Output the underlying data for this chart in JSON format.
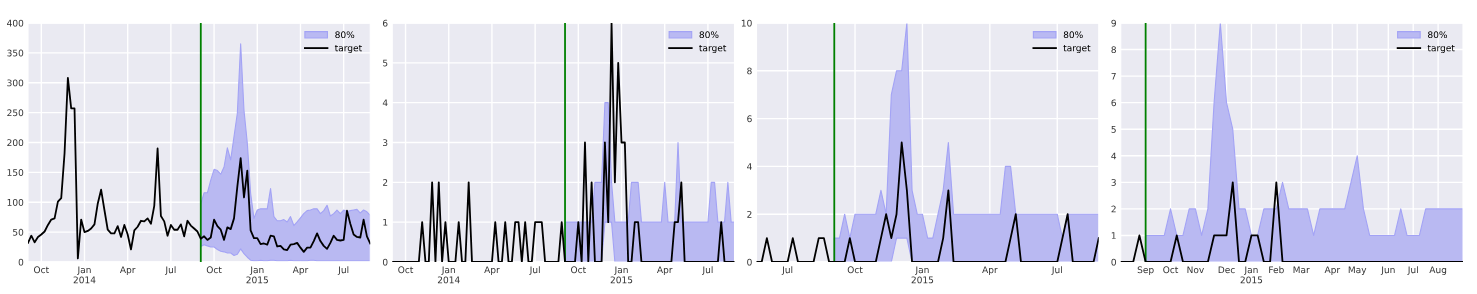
{
  "chart_data": [
    {
      "type": "line",
      "grid": true,
      "legend": "top right",
      "x": [
        "2013-09-08",
        "2013-09-15",
        "2013-09-22",
        "2013-09-29",
        "2013-10-06",
        "2013-10-13",
        "2013-10-20",
        "2013-10-27",
        "2013-11-03",
        "2013-11-10",
        "2013-11-17",
        "2013-11-24",
        "2013-12-01",
        "2013-12-08",
        "2013-12-15",
        "2013-12-22",
        "2013-12-29",
        "2014-01-05",
        "2014-01-12",
        "2014-01-19",
        "2014-01-26",
        "2014-02-02",
        "2014-02-09",
        "2014-02-16",
        "2014-02-23",
        "2014-03-02",
        "2014-03-09",
        "2014-03-16",
        "2014-03-23",
        "2014-03-30",
        "2014-04-06",
        "2014-04-13",
        "2014-04-20",
        "2014-04-27",
        "2014-05-04",
        "2014-05-11",
        "2014-05-18",
        "2014-05-25",
        "2014-06-01",
        "2014-06-08",
        "2014-06-15",
        "2014-06-22",
        "2014-06-29",
        "2014-07-06",
        "2014-07-13",
        "2014-07-20",
        "2014-07-27",
        "2014-08-03",
        "2014-08-10",
        "2014-08-17",
        "2014-08-24",
        "2014-08-31",
        "2014-09-07",
        "2014-09-14",
        "2014-09-21",
        "2014-09-28",
        "2014-10-05",
        "2014-10-12",
        "2014-10-19",
        "2014-10-26",
        "2014-11-02",
        "2014-11-09",
        "2014-11-16",
        "2014-11-23",
        "2014-11-30",
        "2014-12-07",
        "2014-12-14",
        "2014-12-21",
        "2014-12-28",
        "2015-01-04",
        "2015-01-11",
        "2015-01-18",
        "2015-01-25",
        "2015-02-01",
        "2015-02-08",
        "2015-02-15",
        "2015-02-22",
        "2015-03-01",
        "2015-03-08",
        "2015-03-15",
        "2015-03-22",
        "2015-03-29",
        "2015-04-05",
        "2015-04-12",
        "2015-04-19",
        "2015-04-26",
        "2015-05-03",
        "2015-05-10",
        "2015-05-17",
        "2015-05-24",
        "2015-05-31",
        "2015-06-07",
        "2015-06-14",
        "2015-06-21",
        "2015-06-28",
        "2015-07-05",
        "2015-07-12",
        "2015-07-19",
        "2015-07-26",
        "2015-08-02",
        "2015-08-09",
        "2015-08-16",
        "2015-08-23",
        "2015-08-30"
      ],
      "xlim": [
        "2013-09-08",
        "2015-08-30"
      ],
      "xticks": [
        {
          "value": "2013-10-06",
          "label": "Oct"
        },
        {
          "value": "2014-01-05",
          "label": "Jan\n2014"
        },
        {
          "value": "2014-04-06",
          "label": "Apr"
        },
        {
          "value": "2014-07-06",
          "label": "Jul"
        },
        {
          "value": "2014-10-05",
          "label": "Oct"
        },
        {
          "value": "2015-01-04",
          "label": "Jan\n2015"
        },
        {
          "value": "2015-04-05",
          "label": "Apr"
        },
        {
          "value": "2015-07-05",
          "label": "Jul"
        }
      ],
      "ylim": [
        0,
        400
      ],
      "yticks": [
        0,
        50,
        100,
        150,
        200,
        250,
        300,
        350,
        400
      ],
      "ref_lines": [
        {
          "axis": "x",
          "value": "2014-09-07",
          "color": "#008000"
        }
      ],
      "series": [
        {
          "name": "80%",
          "type": "area",
          "color": "#b9b9f2",
          "x": [
            "2014-09-07",
            "2014-09-14",
            "2014-09-21",
            "2014-09-28",
            "2014-10-05",
            "2014-10-12",
            "2014-10-19",
            "2014-10-26",
            "2014-11-02",
            "2014-11-09",
            "2014-11-16",
            "2014-11-23",
            "2014-11-30",
            "2014-12-07",
            "2014-12-14",
            "2014-12-21",
            "2014-12-28",
            "2015-01-04",
            "2015-01-11",
            "2015-01-18",
            "2015-01-25",
            "2015-02-01",
            "2015-02-08",
            "2015-02-15",
            "2015-02-22",
            "2015-03-01",
            "2015-03-08",
            "2015-03-15",
            "2015-03-22",
            "2015-03-29",
            "2015-04-05",
            "2015-04-12",
            "2015-04-19",
            "2015-04-26",
            "2015-05-03",
            "2015-05-10",
            "2015-05-17",
            "2015-05-24",
            "2015-05-31",
            "2015-06-07",
            "2015-06-14",
            "2015-06-21",
            "2015-06-28",
            "2015-07-05",
            "2015-07-12",
            "2015-07-19",
            "2015-07-26",
            "2015-08-02",
            "2015-08-09",
            "2015-08-16",
            "2015-08-23",
            "2015-08-30"
          ],
          "lower": [
            26,
            29,
            27,
            25,
            25,
            21,
            18,
            17,
            15,
            15,
            11,
            13,
            22,
            14,
            8,
            3,
            2,
            2,
            3,
            2,
            2,
            3,
            3,
            2,
            2,
            2,
            2,
            3,
            2,
            2,
            2,
            2,
            2,
            3,
            3,
            2,
            2,
            2,
            2,
            2,
            2,
            2,
            2,
            2,
            2,
            2,
            2,
            2,
            2,
            2,
            2,
            2
          ],
          "values": [
            null,
            null,
            null,
            null,
            null,
            null,
            null,
            null,
            null,
            null,
            null,
            null,
            null,
            null,
            null,
            null,
            null,
            null,
            null,
            null,
            null,
            null,
            null,
            null,
            null,
            null,
            null,
            null,
            null,
            null,
            null,
            null,
            null,
            null,
            null,
            null,
            null,
            null,
            null,
            null,
            null,
            null,
            null,
            null,
            null,
            null,
            null,
            null,
            null,
            null,
            null,
            null
          ],
          "upper": [
            97,
            116,
            116,
            137,
            155,
            153,
            147,
            159,
            191,
            171,
            210,
            249,
            365,
            254,
            199,
            115,
            73,
            87,
            89,
            89,
            89,
            123,
            76,
            69,
            69,
            71,
            67,
            76,
            61,
            67,
            74,
            81,
            86,
            87,
            89,
            89,
            81,
            86,
            95,
            77,
            81,
            87,
            81,
            87,
            84,
            86,
            87,
            88,
            82,
            87,
            84,
            78
          ]
        },
        {
          "name": "target",
          "color": "#000000",
          "values": [
            32,
            44,
            33,
            42,
            46,
            51,
            62,
            71,
            73,
            101,
            107,
            182,
            308,
            257,
            257,
            6,
            71,
            50,
            52,
            56,
            63,
            98,
            121,
            87,
            54,
            48,
            48,
            60,
            42,
            62,
            46,
            21,
            53,
            59,
            69,
            68,
            73,
            64,
            94,
            190,
            77,
            68,
            44,
            62,
            54,
            54,
            63,
            43,
            69,
            61,
            56,
            51,
            39,
            43,
            37,
            41,
            71,
            60,
            54,
            37,
            58,
            55,
            73,
            126,
            174,
            108,
            153,
            53,
            40,
            40,
            30,
            31,
            29,
            44,
            43,
            26,
            27,
            21,
            20,
            29,
            30,
            32,
            24,
            17,
            24,
            24,
            35,
            48,
            35,
            27,
            22,
            32,
            44,
            37,
            36,
            37,
            86,
            64,
            46,
            42,
            41,
            71,
            43,
            31
          ]
        }
      ]
    },
    {
      "type": "line",
      "grid": true,
      "legend": "top right",
      "x": [
        "2013-09-08",
        "2013-09-15",
        "2013-09-22",
        "2013-09-29",
        "2013-10-06",
        "2013-10-13",
        "2013-10-20",
        "2013-10-27",
        "2013-11-03",
        "2013-11-10",
        "2013-11-17",
        "2013-11-24",
        "2013-12-01",
        "2013-12-08",
        "2013-12-15",
        "2013-12-22",
        "2013-12-29",
        "2014-01-05",
        "2014-01-12",
        "2014-01-19",
        "2014-01-26",
        "2014-02-02",
        "2014-02-09",
        "2014-02-16",
        "2014-02-23",
        "2014-03-02",
        "2014-03-09",
        "2014-03-16",
        "2014-03-23",
        "2014-03-30",
        "2014-04-06",
        "2014-04-13",
        "2014-04-20",
        "2014-04-27",
        "2014-05-04",
        "2014-05-11",
        "2014-05-18",
        "2014-05-25",
        "2014-06-01",
        "2014-06-08",
        "2014-06-15",
        "2014-06-22",
        "2014-06-29",
        "2014-07-06",
        "2014-07-13",
        "2014-07-20",
        "2014-07-27",
        "2014-08-03",
        "2014-08-10",
        "2014-08-17",
        "2014-08-24",
        "2014-08-31",
        "2014-09-07",
        "2014-09-14",
        "2014-09-21",
        "2014-09-28",
        "2014-10-05",
        "2014-10-12",
        "2014-10-19",
        "2014-10-26",
        "2014-11-02",
        "2014-11-09",
        "2014-11-16",
        "2014-11-23",
        "2014-11-30",
        "2014-12-07",
        "2014-12-14",
        "2014-12-21",
        "2014-12-28",
        "2015-01-04",
        "2015-01-11",
        "2015-01-18",
        "2015-01-25",
        "2015-02-01",
        "2015-02-08",
        "2015-02-15",
        "2015-02-22",
        "2015-03-01",
        "2015-03-08",
        "2015-03-15",
        "2015-03-22",
        "2015-03-29",
        "2015-04-05",
        "2015-04-12",
        "2015-04-19",
        "2015-04-26",
        "2015-05-03",
        "2015-05-10",
        "2015-05-17",
        "2015-05-24",
        "2015-05-31",
        "2015-06-07",
        "2015-06-14",
        "2015-06-21",
        "2015-06-28",
        "2015-07-05",
        "2015-07-12",
        "2015-07-19",
        "2015-07-26",
        "2015-08-02",
        "2015-08-09",
        "2015-08-16",
        "2015-08-23",
        "2015-08-30"
      ],
      "xlim": [
        "2013-09-08",
        "2015-08-30"
      ],
      "xticks": [
        {
          "value": "2013-10-06",
          "label": "Oct"
        },
        {
          "value": "2014-01-05",
          "label": "Jan\n2014"
        },
        {
          "value": "2014-04-06",
          "label": "Apr"
        },
        {
          "value": "2014-07-06",
          "label": "Jul"
        },
        {
          "value": "2014-10-05",
          "label": "Oct"
        },
        {
          "value": "2015-01-04",
          "label": "Jan\n2015"
        },
        {
          "value": "2015-04-05",
          "label": "Apr"
        },
        {
          "value": "2015-07-05",
          "label": "Jul"
        }
      ],
      "ylim": [
        0,
        6
      ],
      "yticks": [
        0,
        1,
        2,
        3,
        4,
        5,
        6
      ],
      "ref_lines": [
        {
          "axis": "x",
          "value": "2014-09-07",
          "color": "#008000"
        }
      ],
      "series": [
        {
          "name": "80%",
          "type": "area",
          "color": "#b9b9f2",
          "x": [
            "2014-09-07",
            "2014-09-14",
            "2014-09-21",
            "2014-09-28",
            "2014-10-05",
            "2014-10-12",
            "2014-10-19",
            "2014-10-26",
            "2014-11-02",
            "2014-11-09",
            "2014-11-16",
            "2014-11-23",
            "2014-11-30",
            "2014-12-07",
            "2014-12-14",
            "2014-12-21",
            "2014-12-28",
            "2015-01-04",
            "2015-01-11",
            "2015-01-18",
            "2015-01-25",
            "2015-02-01",
            "2015-02-08",
            "2015-02-15",
            "2015-02-22",
            "2015-03-01",
            "2015-03-08",
            "2015-03-15",
            "2015-03-22",
            "2015-03-29",
            "2015-04-05",
            "2015-04-12",
            "2015-04-19",
            "2015-04-26",
            "2015-05-03",
            "2015-05-10",
            "2015-05-17",
            "2015-05-24",
            "2015-05-31",
            "2015-06-07",
            "2015-06-14",
            "2015-06-21",
            "2015-06-28",
            "2015-07-05",
            "2015-07-12",
            "2015-07-19",
            "2015-07-26",
            "2015-08-02",
            "2015-08-09",
            "2015-08-16",
            "2015-08-23",
            "2015-08-30"
          ],
          "lower": [
            0,
            0,
            0,
            0,
            0,
            0,
            0,
            0,
            0,
            0,
            0,
            0,
            1,
            1,
            1,
            0,
            0,
            0,
            0,
            0,
            0,
            0,
            0,
            0,
            0,
            0,
            0,
            0,
            0,
            0,
            0,
            0,
            0,
            0,
            0,
            0,
            0,
            0,
            0,
            0,
            0,
            0,
            0,
            0,
            0,
            0,
            0,
            0,
            0,
            0,
            0,
            0
          ],
          "values": [
            null,
            null,
            null,
            null,
            null,
            null,
            null,
            null,
            null,
            null,
            null,
            null,
            null,
            null,
            null,
            null,
            null,
            null,
            null,
            null,
            null,
            null,
            null,
            null,
            null,
            null,
            null,
            null,
            null,
            null,
            null,
            null,
            null,
            null,
            null,
            null,
            null,
            null,
            null,
            null,
            null,
            null,
            null,
            null,
            null,
            null,
            null,
            null,
            null,
            null,
            null,
            null
          ],
          "upper": [
            1,
            1,
            1,
            1,
            1,
            1,
            1,
            1,
            1,
            2,
            2,
            2,
            4,
            4,
            2,
            1,
            1,
            1,
            1,
            1,
            2,
            2,
            2,
            1,
            1,
            1,
            1,
            1,
            1,
            1,
            2,
            1,
            1,
            1,
            3,
            1,
            1,
            1,
            1,
            1,
            1,
            1,
            1,
            1,
            2,
            2,
            1,
            1,
            1,
            2,
            1,
            1
          ]
        },
        {
          "name": "target",
          "color": "#000000",
          "values": [
            0,
            0,
            0,
            0,
            0,
            0,
            0,
            0,
            0,
            1,
            0,
            0,
            2,
            0,
            2,
            0,
            1,
            0,
            0,
            0,
            1,
            0,
            0,
            2,
            0,
            0,
            0,
            0,
            0,
            0,
            0,
            1,
            0,
            0,
            1,
            0,
            0,
            1,
            1,
            0,
            1,
            0,
            0,
            1,
            1,
            1,
            0,
            0,
            0,
            0,
            0,
            1,
            0,
            0,
            0,
            0,
            1,
            0,
            3,
            0,
            2,
            0,
            0,
            0,
            3,
            1,
            6,
            2,
            5,
            3,
            3,
            0,
            0,
            1,
            1,
            0,
            0,
            0,
            0,
            0,
            0,
            0,
            0,
            0,
            0,
            1,
            1,
            2,
            0,
            0,
            0,
            0,
            0,
            0,
            0,
            0,
            0,
            0,
            0,
            1,
            0,
            0,
            0,
            0
          ]
        }
      ]
    },
    {
      "type": "line",
      "grid": true,
      "legend": "top right",
      "x": [
        "2014-05-25",
        "2014-06-01",
        "2014-06-08",
        "2014-06-15",
        "2014-06-22",
        "2014-06-29",
        "2014-07-06",
        "2014-07-13",
        "2014-07-20",
        "2014-07-27",
        "2014-08-03",
        "2014-08-10",
        "2014-08-17",
        "2014-08-24",
        "2014-08-31",
        "2014-09-07",
        "2014-09-14",
        "2014-09-21",
        "2014-09-28",
        "2014-10-05",
        "2014-10-12",
        "2014-10-19",
        "2014-10-26",
        "2014-11-02",
        "2014-11-09",
        "2014-11-16",
        "2014-11-23",
        "2014-11-30",
        "2014-12-07",
        "2014-12-14",
        "2014-12-21",
        "2014-12-28",
        "2015-01-04",
        "2015-01-11",
        "2015-01-18",
        "2015-01-25",
        "2015-02-01",
        "2015-02-08",
        "2015-02-15",
        "2015-02-22",
        "2015-03-01",
        "2015-03-08",
        "2015-03-15",
        "2015-03-22",
        "2015-03-29",
        "2015-04-05",
        "2015-04-12",
        "2015-04-19",
        "2015-04-26",
        "2015-05-03",
        "2015-05-10",
        "2015-05-17",
        "2015-05-24",
        "2015-05-31",
        "2015-06-07",
        "2015-06-14",
        "2015-06-21",
        "2015-06-28",
        "2015-07-05",
        "2015-07-12",
        "2015-07-19",
        "2015-07-26",
        "2015-08-02",
        "2015-08-09",
        "2015-08-16",
        "2015-08-23",
        "2015-08-30"
      ],
      "xlim": [
        "2014-05-25",
        "2015-08-30"
      ],
      "xticks": [
        {
          "value": "2014-07-06",
          "label": "Jul"
        },
        {
          "value": "2014-10-05",
          "label": "Oct"
        },
        {
          "value": "2015-01-04",
          "label": "Jan\n2015"
        },
        {
          "value": "2015-04-05",
          "label": "Apr"
        },
        {
          "value": "2015-07-05",
          "label": "Jul"
        }
      ],
      "ylim": [
        0,
        10
      ],
      "yticks": [
        0,
        2,
        4,
        6,
        8,
        10
      ],
      "ref_lines": [
        {
          "axis": "x",
          "value": "2014-09-07",
          "color": "#008000"
        }
      ],
      "series": [
        {
          "name": "80%",
          "type": "area",
          "color": "#b9b9f2",
          "x": [
            "2014-09-07",
            "2014-09-14",
            "2014-09-21",
            "2014-09-28",
            "2014-10-05",
            "2014-10-12",
            "2014-10-19",
            "2014-10-26",
            "2014-11-02",
            "2014-11-09",
            "2014-11-16",
            "2014-11-23",
            "2014-11-30",
            "2014-12-07",
            "2014-12-14",
            "2014-12-21",
            "2014-12-28",
            "2015-01-04",
            "2015-01-11",
            "2015-01-18",
            "2015-01-25",
            "2015-02-01",
            "2015-02-08",
            "2015-02-15",
            "2015-02-22",
            "2015-03-01",
            "2015-03-08",
            "2015-03-15",
            "2015-03-22",
            "2015-03-29",
            "2015-04-05",
            "2015-04-12",
            "2015-04-19",
            "2015-04-26",
            "2015-05-03",
            "2015-05-10",
            "2015-05-17",
            "2015-05-24",
            "2015-05-31",
            "2015-06-07",
            "2015-06-14",
            "2015-06-21",
            "2015-06-28",
            "2015-07-05",
            "2015-07-12",
            "2015-07-19",
            "2015-07-26",
            "2015-08-02",
            "2015-08-09",
            "2015-08-16",
            "2015-08-23",
            "2015-08-30"
          ],
          "lower": [
            0,
            0,
            0,
            0,
            0,
            0,
            0,
            0,
            0,
            0,
            0,
            0,
            1,
            1,
            1,
            0,
            0,
            0,
            0,
            0,
            0,
            0,
            0,
            0,
            0,
            0,
            0,
            0,
            0,
            0,
            0,
            0,
            0,
            0,
            0,
            0,
            0,
            0,
            0,
            0,
            0,
            0,
            0,
            0,
            0,
            0,
            0,
            0,
            0,
            0,
            0,
            0
          ],
          "values": [
            null,
            null,
            null,
            null,
            null,
            null,
            null,
            null,
            null,
            null,
            null,
            null,
            null,
            null,
            null,
            null,
            null,
            null,
            null,
            null,
            null,
            null,
            null,
            null,
            null,
            null,
            null,
            null,
            null,
            null,
            null,
            null,
            null,
            null,
            null,
            null,
            null,
            null,
            null,
            null,
            null,
            null,
            null,
            null,
            null,
            null,
            null,
            null,
            null,
            null,
            null,
            null
          ],
          "upper": [
            1,
            1,
            2,
            1,
            2,
            2,
            2,
            2,
            2,
            3,
            2,
            7,
            8,
            8,
            10,
            3,
            2,
            2,
            1,
            1,
            2,
            3,
            5,
            2,
            2,
            2,
            2,
            2,
            2,
            2,
            2,
            2,
            2,
            4,
            4,
            2,
            2,
            2,
            2,
            2,
            2,
            2,
            2,
            2,
            1,
            2,
            2,
            2,
            2,
            2,
            2,
            2
          ]
        },
        {
          "name": "target",
          "color": "#000000",
          "values": [
            0,
            0,
            1,
            0,
            0,
            0,
            0,
            1,
            0,
            0,
            0,
            0,
            1,
            1,
            0,
            0,
            0,
            0,
            1,
            0,
            0,
            0,
            0,
            0,
            1,
            2,
            1,
            2,
            5,
            3,
            0,
            0,
            0,
            0,
            0,
            0,
            1,
            3,
            0,
            0,
            0,
            0,
            0,
            0,
            0,
            0,
            0,
            0,
            0,
            1,
            2,
            0,
            0,
            0,
            0,
            0,
            0,
            0,
            0,
            1,
            2,
            0,
            0,
            0,
            0,
            0,
            1
          ]
        }
      ]
    },
    {
      "type": "line",
      "grid": true,
      "legend": "top right",
      "x": [
        "2014-08-10",
        "2014-08-17",
        "2014-08-24",
        "2014-08-31",
        "2014-09-07",
        "2014-09-14",
        "2014-09-21",
        "2014-09-28",
        "2014-10-05",
        "2014-10-12",
        "2014-10-19",
        "2014-10-26",
        "2014-11-02",
        "2014-11-09",
        "2014-11-16",
        "2014-11-23",
        "2014-11-30",
        "2014-12-07",
        "2014-12-14",
        "2014-12-21",
        "2014-12-28",
        "2015-01-04",
        "2015-01-11",
        "2015-01-18",
        "2015-01-25",
        "2015-02-01",
        "2015-02-08",
        "2015-02-15",
        "2015-02-22",
        "2015-03-01",
        "2015-03-08",
        "2015-03-15",
        "2015-03-22",
        "2015-03-29",
        "2015-04-05",
        "2015-04-12",
        "2015-04-19",
        "2015-04-26",
        "2015-05-03",
        "2015-05-10",
        "2015-05-17",
        "2015-05-24",
        "2015-05-31",
        "2015-06-07",
        "2015-06-14",
        "2015-06-21",
        "2015-06-28",
        "2015-07-05",
        "2015-07-12",
        "2015-07-19",
        "2015-07-26",
        "2015-08-02",
        "2015-08-09",
        "2015-08-16",
        "2015-08-23",
        "2015-08-30"
      ],
      "xlim": [
        "2014-08-10",
        "2015-08-30"
      ],
      "xticks": [
        {
          "value": "2014-09-07",
          "label": "Sep"
        },
        {
          "value": "2014-10-05",
          "label": "Oct"
        },
        {
          "value": "2014-11-02",
          "label": "Nov"
        },
        {
          "value": "2014-12-07",
          "label": "Dec"
        },
        {
          "value": "2015-01-04",
          "label": "Jan\n2015"
        },
        {
          "value": "2015-02-01",
          "label": "Feb"
        },
        {
          "value": "2015-03-01",
          "label": "Mar"
        },
        {
          "value": "2015-04-05",
          "label": "Apr"
        },
        {
          "value": "2015-05-03",
          "label": "May"
        },
        {
          "value": "2015-06-07",
          "label": "Jun"
        },
        {
          "value": "2015-07-05",
          "label": "Jul"
        },
        {
          "value": "2015-08-02",
          "label": "Aug"
        }
      ],
      "ylim": [
        0,
        9
      ],
      "yticks": [
        0,
        1,
        2,
        3,
        4,
        5,
        6,
        7,
        8,
        9
      ],
      "ref_lines": [
        {
          "axis": "x",
          "value": "2014-09-07",
          "color": "#008000"
        }
      ],
      "series": [
        {
          "name": "80%",
          "type": "area",
          "color": "#b9b9f2",
          "x": [
            "2014-09-07",
            "2014-09-14",
            "2014-09-21",
            "2014-09-28",
            "2014-10-05",
            "2014-10-12",
            "2014-10-19",
            "2014-10-26",
            "2014-11-02",
            "2014-11-09",
            "2014-11-16",
            "2014-11-23",
            "2014-11-30",
            "2014-12-07",
            "2014-12-14",
            "2014-12-21",
            "2014-12-28",
            "2015-01-04",
            "2015-01-11",
            "2015-01-18",
            "2015-01-25",
            "2015-02-01",
            "2015-02-08",
            "2015-02-15",
            "2015-02-22",
            "2015-03-01",
            "2015-03-08",
            "2015-03-15",
            "2015-03-22",
            "2015-03-29",
            "2015-04-05",
            "2015-04-12",
            "2015-04-19",
            "2015-04-26",
            "2015-05-03",
            "2015-05-10",
            "2015-05-17",
            "2015-05-24",
            "2015-05-31",
            "2015-06-07",
            "2015-06-14",
            "2015-06-21",
            "2015-06-28",
            "2015-07-05",
            "2015-07-12",
            "2015-07-19",
            "2015-07-26",
            "2015-08-02",
            "2015-08-09",
            "2015-08-16",
            "2015-08-23",
            "2015-08-30"
          ],
          "lower": [
            0,
            0,
            0,
            0,
            0,
            0,
            0,
            0,
            0,
            0,
            0,
            0,
            0,
            0,
            0,
            0,
            0,
            0,
            0,
            0,
            0,
            0,
            0,
            0,
            0,
            0,
            0,
            0,
            0,
            0,
            0,
            0,
            0,
            0,
            0,
            0,
            0,
            0,
            0,
            0,
            0,
            0,
            0,
            0,
            0,
            0,
            0,
            0,
            0,
            0,
            0,
            0
          ],
          "values": [
            null,
            null,
            null,
            null,
            null,
            null,
            null,
            null,
            null,
            null,
            null,
            null,
            null,
            null,
            null,
            null,
            null,
            null,
            null,
            null,
            null,
            null,
            null,
            null,
            null,
            null,
            null,
            null,
            null,
            null,
            null,
            null,
            null,
            null,
            null,
            null,
            null,
            null,
            null,
            null,
            null,
            null,
            null,
            null,
            null,
            null,
            null,
            null,
            null,
            null,
            null,
            null
          ],
          "upper": [
            1,
            1,
            1,
            1,
            2,
            1,
            1,
            2,
            2,
            1,
            2,
            6,
            9,
            6,
            5,
            2,
            2,
            1,
            1,
            2,
            2,
            2,
            3,
            2,
            2,
            2,
            2,
            1,
            2,
            2,
            2,
            2,
            2,
            3,
            4,
            2,
            1,
            1,
            1,
            1,
            1,
            2,
            1,
            1,
            1,
            2,
            2,
            2,
            2,
            2,
            2,
            2
          ]
        },
        {
          "name": "target",
          "color": "#000000",
          "values": [
            0,
            0,
            0,
            1,
            0,
            0,
            0,
            0,
            0,
            1,
            0,
            0,
            0,
            0,
            0,
            1,
            1,
            1,
            3,
            0,
            0,
            1,
            1,
            0,
            0,
            3,
            0,
            0,
            0,
            0,
            0,
            0,
            0,
            0,
            0,
            0,
            0,
            0,
            0,
            0,
            0,
            0,
            0,
            0,
            0,
            0,
            0,
            0,
            0,
            0,
            0,
            0,
            0,
            0,
            0,
            0
          ]
        }
      ]
    }
  ]
}
